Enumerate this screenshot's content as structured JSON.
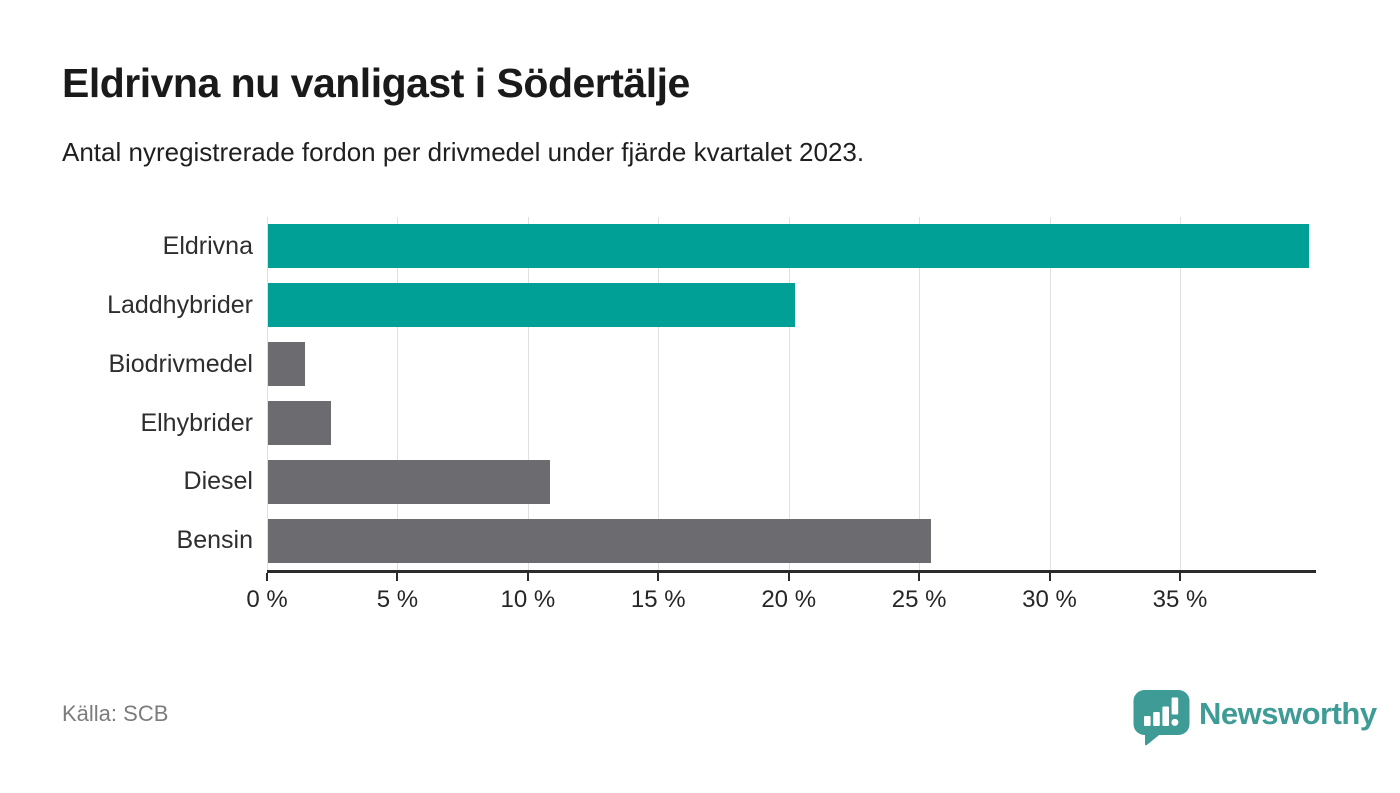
{
  "header": {
    "title": "Eldrivna nu vanligast i Södertälje",
    "subtitle": "Antal nyregistrerade fordon per drivmedel under fjärde kvartalet 2023."
  },
  "chart_data": {
    "type": "bar",
    "orientation": "horizontal",
    "title": "Eldrivna nu vanligast i Södertälje",
    "subtitle": "Antal nyregistrerade fordon per drivmedel under fjärde kvartalet 2023.",
    "categories": [
      "Eldrivna",
      "Laddhybrider",
      "Biodrivmedel",
      "Elhybrider",
      "Diesel",
      "Bensin"
    ],
    "values": [
      39.9,
      20.2,
      1.4,
      2.4,
      10.8,
      25.4
    ],
    "unit": "%",
    "xlim": [
      0,
      40.1
    ],
    "x_ticks": [
      0,
      5,
      10,
      15,
      20,
      25,
      30,
      35
    ],
    "x_tick_labels": [
      "0 %",
      "5 %",
      "10 %",
      "15 %",
      "20 %",
      "25 %",
      "30 %",
      "35 %"
    ],
    "grid": "vertical",
    "legend": "none",
    "bar_colors": [
      "#00a096",
      "#00a096",
      "#6c6c70",
      "#6c6c70",
      "#6c6c70",
      "#6c6c70"
    ]
  },
  "footer": {
    "source": "Källa: SCB",
    "brand": "Newsworthy"
  },
  "colors": {
    "highlight_teal": "#00a096",
    "neutral_gray": "#6c6c70",
    "brand_teal": "#3e9b95",
    "gridline": "#e0e0e0",
    "axis": "#2b2b2b",
    "title_text": "#1a1a1a",
    "muted_text": "#7c7c7c"
  }
}
